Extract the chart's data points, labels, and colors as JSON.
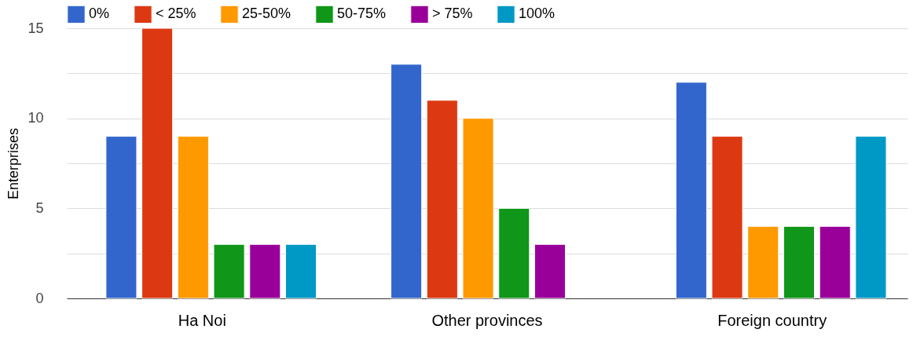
{
  "chart_data": {
    "type": "bar",
    "ylabel": "Enterprises",
    "categories": [
      "Ha Noi",
      "Other provinces",
      "Foreign country"
    ],
    "series": [
      {
        "name": "0%",
        "color": "#3366cc",
        "values": [
          9,
          13,
          12
        ]
      },
      {
        "name": "< 25%",
        "color": "#dc3912",
        "values": [
          15,
          11,
          9
        ]
      },
      {
        "name": "25-50%",
        "color": "#ff9900",
        "values": [
          9,
          10,
          4
        ]
      },
      {
        "name": "50-75%",
        "color": "#109618",
        "values": [
          3,
          5,
          4
        ]
      },
      {
        "name": "> 75%",
        "color": "#990099",
        "values": [
          3,
          3,
          4
        ]
      },
      {
        "name": "100%",
        "color": "#0099c6",
        "values": [
          3,
          null,
          9
        ]
      }
    ],
    "ylim": [
      0,
      15
    ],
    "yticks": [
      0,
      {
        "value": 2.5,
        "label": null
      },
      5,
      {
        "value": 7.5,
        "label": null
      },
      10,
      {
        "value": 12.5,
        "label": null
      },
      15
    ],
    "grid": "y",
    "legend": "top left"
  }
}
